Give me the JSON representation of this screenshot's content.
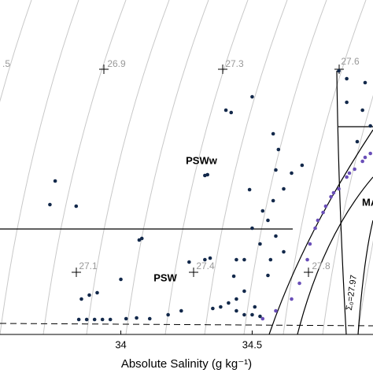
{
  "chart_data": {
    "type": "scatter",
    "xlabel": "Absolute Salinity (g kg⁻¹)",
    "xlim": [
      33.54,
      34.96
    ],
    "xticks": [
      34,
      34.5
    ],
    "ylim": [
      -2,
      2.25
    ],
    "contour_labels": [
      ".5",
      "26.9",
      "27.3",
      "27.6",
      "27.1",
      "27.4",
      "27.8"
    ],
    "water_masses": [
      "PSWw",
      "PSW",
      "MAW"
    ],
    "isopycnal_label": "Σ₀=27.97",
    "series": [
      {
        "color": "#13294b",
        "x": [
          33.75,
          33.73,
          33.83,
          34.08,
          34.0,
          34.07,
          34.33,
          34.32,
          34.4,
          34.42,
          34.6,
          34.58,
          34.5,
          34.59,
          34.49,
          34.32,
          34.26,
          34.34,
          34.44,
          34.43,
          34.47,
          34.5,
          34.54,
          34.56,
          34.58,
          34.62,
          34.65,
          34.69,
          34.59,
          34.62,
          34.53,
          34.47,
          34.44,
          34.41,
          34.38,
          34.35,
          34.23,
          34.18,
          34.11,
          34.06,
          34.02,
          33.96,
          33.93,
          33.9,
          33.87,
          33.84,
          33.85,
          33.88,
          33.91,
          34.47,
          34.5,
          34.53,
          34.44,
          34.51,
          34.56,
          34.57,
          34.83,
          34.86,
          34.86,
          34.92,
          34.93,
          34.9,
          34.95
        ],
        "values": [
          -0.05,
          -0.35,
          -0.37,
          -0.78,
          -1.3,
          -0.8,
          0.03,
          0.02,
          0.85,
          0.82,
          0.35,
          0.55,
          1.02,
          0.09,
          -0.16,
          -1.05,
          -1.08,
          -1.03,
          -1.05,
          -1.26,
          -1.05,
          -0.65,
          -0.43,
          -0.55,
          -0.3,
          -0.15,
          0.05,
          0.15,
          -0.75,
          -0.95,
          -0.85,
          -1.45,
          -1.55,
          -1.6,
          -1.65,
          -1.67,
          -1.7,
          -1.75,
          -1.8,
          -1.79,
          -1.8,
          -1.81,
          -1.81,
          -1.81,
          -1.81,
          -1.81,
          -1.55,
          -1.5,
          -1.47,
          -1.75,
          -1.75,
          -1.77,
          -1.7,
          -1.65,
          -1.25,
          -1.05,
          1.35,
          1.25,
          0.95,
          0.85,
          1.2,
          0.45,
          0.65
        ]
      },
      {
        "color": "#6a4fb8",
        "x": [
          34.74,
          34.77,
          34.8,
          34.83,
          34.86,
          34.89,
          34.92,
          34.95,
          34.72,
          34.71,
          34.68,
          34.65,
          34.59,
          34.54,
          34.75,
          34.78,
          34.81,
          34.87,
          34.93
        ],
        "values": [
          -0.65,
          -0.45,
          -0.25,
          -0.15,
          0.0,
          0.1,
          0.2,
          0.3,
          -0.85,
          -1.05,
          -1.35,
          -1.55,
          -1.7,
          -1.8,
          -0.55,
          -0.37,
          -0.2,
          0.05,
          0.25
        ]
      }
    ]
  }
}
